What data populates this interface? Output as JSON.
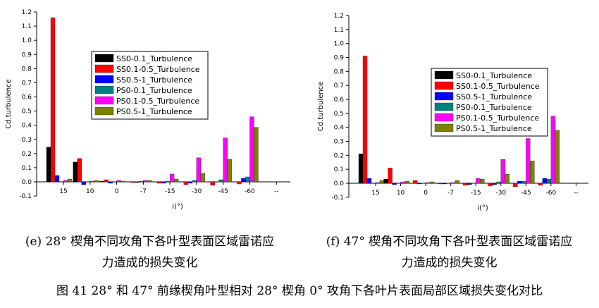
{
  "colors": {
    "SS0-0.1_Turbulence": "#000000",
    "SS0.1-0.5_Turbulence": "#ff0000",
    "SS0.5-1_Turbulence": "#0000ff",
    "PS0-0.1_Turbulence": "#008080",
    "PS0.1-0.5_Turbulence": "#ff00ff",
    "PS0.5-1_Turbulence": "#808000"
  },
  "charts": [
    {
      "caption_line1": "(e) 28° 楔角不同攻角下各叶型表面区域雷诺应",
      "caption_line2": "力造成的损失变化"
    },
    {
      "caption_line1": "(f) 47° 楔角不同攻角下各叶型表面区域雷诺应",
      "caption_line2": "力造成的损失变化"
    }
  ],
  "figure_caption": "图 41   28° 和 47° 前缘楔角叶型相对 28° 楔角 0° 攻角下各叶片表面局部区域损失变化对比",
  "chart_data": [
    {
      "type": "bar",
      "title": "",
      "xlabel": "i(°)",
      "ylabel": "Cd.turbulence",
      "ylim": [
        -0.1,
        1.2
      ],
      "yticks": [
        "-0.1",
        "0.0",
        "0.1",
        "0.2",
        "0.3",
        "0.4",
        "0.5",
        "0.6",
        "0.7",
        "0.8",
        "0.9",
        "1.0",
        "1.1",
        "1.2"
      ],
      "categories": [
        "15",
        "10",
        "0",
        "-7",
        "-15",
        "-30",
        "-45",
        "-60"
      ],
      "extra_tick_label": "--",
      "legend_position": "top-center",
      "series": [
        {
          "name": "SS0-0.1_Turbulence",
          "values": [
            0.245,
            0.14,
            0.005,
            0.0,
            0.0,
            0.0,
            0.0,
            0.0
          ]
        },
        {
          "name": "SS0.1-0.5_Turbulence",
          "values": [
            1.16,
            0.165,
            0.015,
            -0.005,
            -0.01,
            -0.02,
            -0.025,
            -0.015
          ]
        },
        {
          "name": "SS0.5-1_Turbulence",
          "values": [
            0.045,
            -0.02,
            -0.01,
            -0.005,
            -0.01,
            -0.01,
            0.0,
            0.025
          ]
        },
        {
          "name": "PS0-0.1_Turbulence",
          "values": [
            0.0,
            0.0,
            0.0,
            0.005,
            0.005,
            0.01,
            0.015,
            0.035
          ]
        },
        {
          "name": "PS0.1-0.5_Turbulence",
          "values": [
            0.01,
            0.005,
            0.01,
            0.01,
            0.055,
            0.17,
            0.31,
            0.46
          ]
        },
        {
          "name": "PS0.5-1_Turbulence",
          "values": [
            0.02,
            0.01,
            0.005,
            0.01,
            0.02,
            0.06,
            0.16,
            0.385
          ]
        }
      ]
    },
    {
      "type": "bar",
      "title": "",
      "xlabel": "i(°)",
      "ylabel": "Cd.turbulence",
      "ylim": [
        -0.1,
        1.2
      ],
      "yticks": [
        "-0.1",
        "0.0",
        "0.1",
        "0.2",
        "0.3",
        "0.4",
        "0.5",
        "0.6",
        "0.7",
        "0.8",
        "0.9",
        "1.0",
        "1.1",
        "1.2"
      ],
      "categories": [
        "15",
        "10",
        "0",
        "-7",
        "-15",
        "-30",
        "-45",
        "-60"
      ],
      "extra_tick_label": "--",
      "legend_position": "top-center",
      "series": [
        {
          "name": "SS0-0.1_Turbulence",
          "values": [
            0.21,
            0.03,
            0.0,
            0.0,
            0.0,
            0.0,
            0.0,
            0.0
          ]
        },
        {
          "name": "SS0.1-0.5_Turbulence",
          "values": [
            0.91,
            0.11,
            0.02,
            -0.005,
            -0.015,
            -0.02,
            -0.025,
            -0.015
          ]
        },
        {
          "name": "SS0.5-1_Turbulence",
          "values": [
            0.035,
            -0.01,
            -0.005,
            -0.005,
            -0.01,
            -0.01,
            0.015,
            0.035
          ]
        },
        {
          "name": "PS0-0.1_Turbulence",
          "values": [
            0.0,
            0.0,
            0.0,
            0.0,
            0.0,
            0.01,
            0.015,
            0.03
          ]
        },
        {
          "name": "PS0.1-0.5_Turbulence",
          "values": [
            0.005,
            0.01,
            0.005,
            0.005,
            0.035,
            0.17,
            0.32,
            0.48
          ]
        },
        {
          "name": "PS0.5-1_Turbulence",
          "values": [
            0.02,
            0.015,
            0.01,
            0.02,
            0.03,
            0.065,
            0.16,
            0.38
          ]
        }
      ]
    }
  ]
}
